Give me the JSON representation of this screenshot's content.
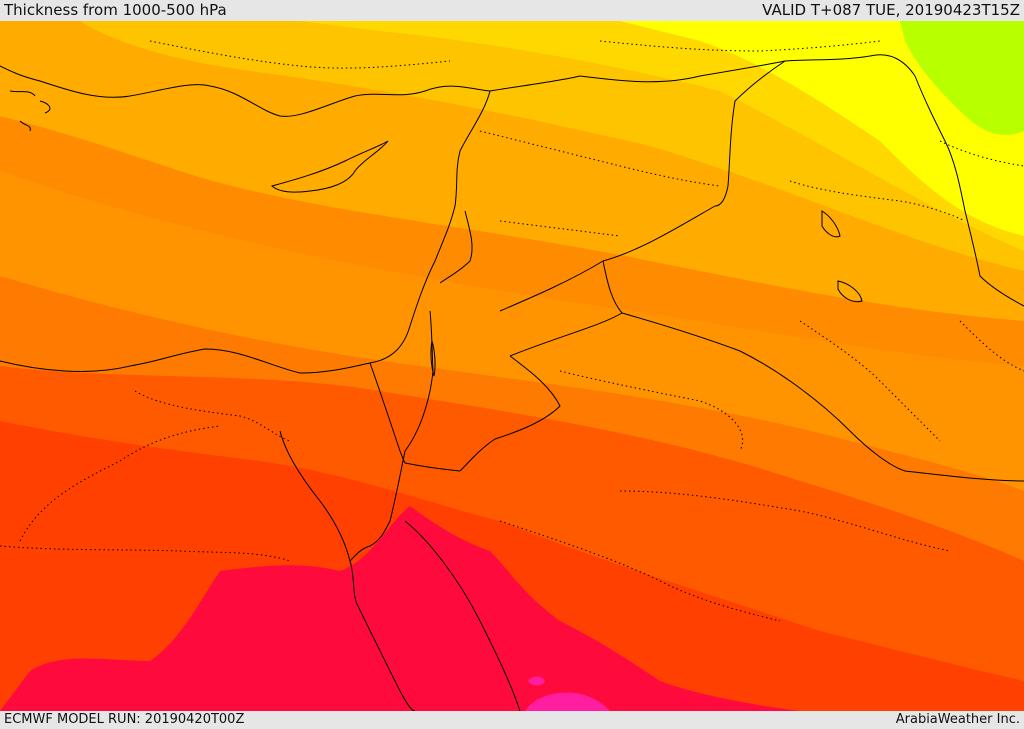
{
  "header": {
    "title": "Thickness from 1000-500 hPa",
    "valid": "VALID T+087 TUE, 20190423T15Z"
  },
  "footer": {
    "model_run": "ECMWF MODEL RUN: 20190420T00Z",
    "credit": "ArabiaWeather Inc."
  },
  "map": {
    "field": "1000-500 hPa thickness",
    "colors": {
      "lime": "#b8ff00",
      "yellow": "#ffff00",
      "light_yellow_orange": "#ffd800",
      "yellow_orange": "#ffc400",
      "light_orange": "#ffab00",
      "orange": "#ff9300",
      "dark_orange": "#ff7a00",
      "orange_red": "#ff5a00",
      "red_orange": "#ff4000",
      "crimson": "#ff0a3c",
      "magenta": "#ff1ea0",
      "boundary": "#000000"
    }
  }
}
